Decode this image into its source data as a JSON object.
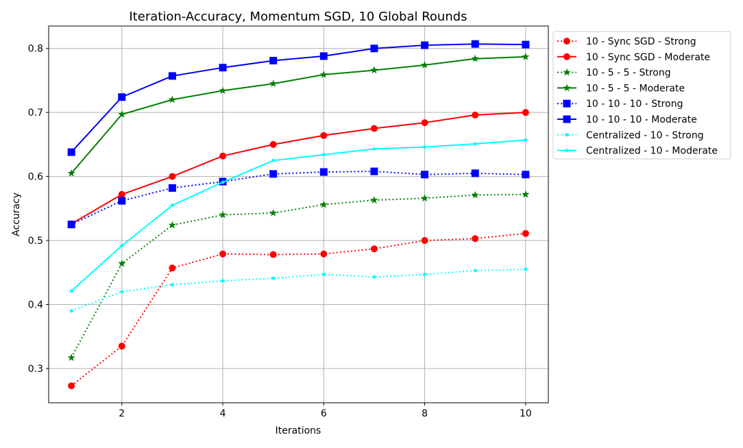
{
  "chart_data": {
    "type": "line",
    "title": "Iteration-Accuracy, Momentum SGD, 10 Global Rounds",
    "xlabel": "Iterations",
    "ylabel": "Accuracy",
    "xlim": [
      0.55,
      10.45
    ],
    "ylim": [
      0.2465,
      0.835
    ],
    "xticks": [
      2,
      4,
      6,
      8,
      10
    ],
    "yticks": [
      0.3,
      0.4,
      0.5,
      0.6,
      0.7,
      0.8
    ],
    "xtick_labels": [
      "2",
      "4",
      "6",
      "8",
      "10"
    ],
    "ytick_labels": [
      "0.3",
      "0.4",
      "0.5",
      "0.6",
      "0.7",
      "0.8"
    ],
    "grid": true,
    "legend_placement": "outside-right-top",
    "x": [
      1,
      2,
      3,
      4,
      5,
      6,
      7,
      8,
      9,
      10
    ],
    "series": [
      {
        "name": "10 - Sync SGD - Strong",
        "color": "#ff0000",
        "style": "dotted",
        "marker": "circle",
        "values": [
          0.273,
          0.335,
          0.457,
          0.479,
          0.478,
          0.479,
          0.487,
          0.5,
          0.503,
          0.511
        ]
      },
      {
        "name": "10 - Sync SGD - Moderate",
        "color": "#ff0000",
        "style": "solid",
        "marker": "circle",
        "values": [
          0.526,
          0.572,
          0.6,
          0.632,
          0.65,
          0.664,
          0.675,
          0.684,
          0.696,
          0.7
        ]
      },
      {
        "name": "10 - 5 - 5 - Strong",
        "color": "#008000",
        "style": "dotted",
        "marker": "star",
        "values": [
          0.317,
          0.464,
          0.524,
          0.54,
          0.543,
          0.556,
          0.563,
          0.566,
          0.571,
          0.572
        ]
      },
      {
        "name": "10 - 5 - 5 - Moderate",
        "color": "#008000",
        "style": "solid",
        "marker": "star",
        "values": [
          0.605,
          0.697,
          0.72,
          0.734,
          0.745,
          0.759,
          0.766,
          0.774,
          0.784,
          0.787
        ]
      },
      {
        "name": "10 - 10 - 10 - Strong",
        "color": "#0000ff",
        "style": "dotted",
        "marker": "square",
        "values": [
          0.525,
          0.562,
          0.582,
          0.592,
          0.604,
          0.607,
          0.608,
          0.603,
          0.605,
          0.603
        ]
      },
      {
        "name": "10 - 10 - 10 - Moderate",
        "color": "#0000ff",
        "style": "solid",
        "marker": "square",
        "values": [
          0.638,
          0.724,
          0.757,
          0.77,
          0.781,
          0.788,
          0.8,
          0.805,
          0.807,
          0.806
        ]
      },
      {
        "name": "Centralized - 10 - Strong",
        "color": "#00ffff",
        "style": "dotted",
        "marker": "dot",
        "values": [
          0.39,
          0.42,
          0.431,
          0.437,
          0.441,
          0.447,
          0.443,
          0.447,
          0.453,
          0.455
        ]
      },
      {
        "name": "Centralized - 10 - Moderate",
        "color": "#00ffff",
        "style": "solid",
        "marker": "dot",
        "values": [
          0.421,
          0.492,
          0.555,
          0.591,
          0.625,
          0.634,
          0.643,
          0.646,
          0.651,
          0.657
        ]
      }
    ]
  }
}
